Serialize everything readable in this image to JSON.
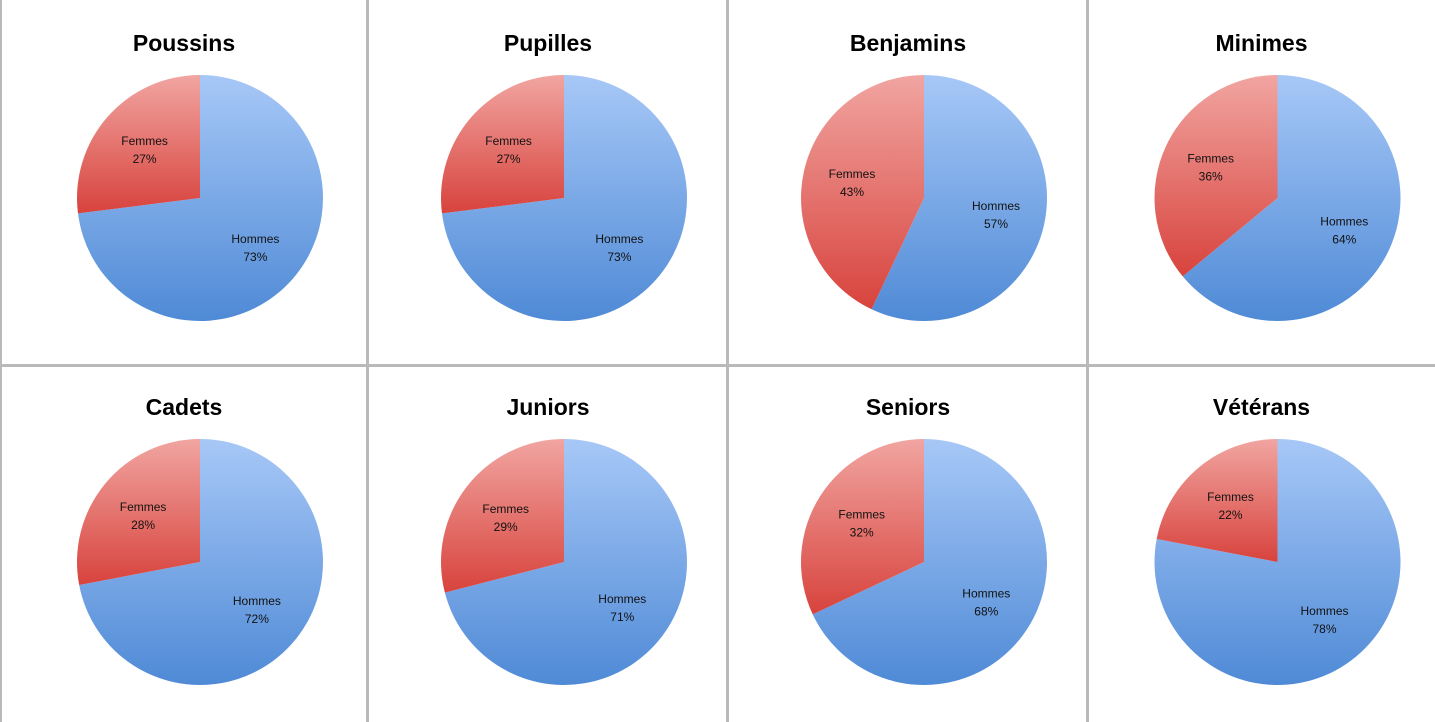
{
  "colors": {
    "hommes": "#5b95dc",
    "femmes": "#e06a63",
    "border": "#b9b9b9"
  },
  "chart_data": [
    {
      "type": "pie",
      "title": "Poussins",
      "slices": [
        {
          "label": "Hommes",
          "value": 73,
          "pct": "73%"
        },
        {
          "label": "Femmes",
          "value": 27,
          "pct": "27%"
        }
      ]
    },
    {
      "type": "pie",
      "title": "Pupilles",
      "slices": [
        {
          "label": "Hommes",
          "value": 73,
          "pct": "73%"
        },
        {
          "label": "Femmes",
          "value": 27,
          "pct": "27%"
        }
      ]
    },
    {
      "type": "pie",
      "title": "Benjamins",
      "slices": [
        {
          "label": "Hommes",
          "value": 57,
          "pct": "57%"
        },
        {
          "label": "Femmes",
          "value": 43,
          "pct": "43%"
        }
      ]
    },
    {
      "type": "pie",
      "title": "Minimes",
      "slices": [
        {
          "label": "Hommes",
          "value": 64,
          "pct": "64%"
        },
        {
          "label": "Femmes",
          "value": 36,
          "pct": "36%"
        }
      ]
    },
    {
      "type": "pie",
      "title": "Cadets",
      "slices": [
        {
          "label": "Hommes",
          "value": 72,
          "pct": "72%"
        },
        {
          "label": "Femmes",
          "value": 28,
          "pct": "28%"
        }
      ]
    },
    {
      "type": "pie",
      "title": "Juniors",
      "slices": [
        {
          "label": "Hommes",
          "value": 71,
          "pct": "71%"
        },
        {
          "label": "Femmes",
          "value": 29,
          "pct": "29%"
        }
      ]
    },
    {
      "type": "pie",
      "title": "Seniors",
      "slices": [
        {
          "label": "Hommes",
          "value": 68,
          "pct": "68%"
        },
        {
          "label": "Femmes",
          "value": 32,
          "pct": "32%"
        }
      ]
    },
    {
      "type": "pie",
      "title": "Vétérans",
      "slices": [
        {
          "label": "Hommes",
          "value": 78,
          "pct": "78%"
        },
        {
          "label": "Femmes",
          "value": 22,
          "pct": "22%"
        }
      ]
    }
  ]
}
